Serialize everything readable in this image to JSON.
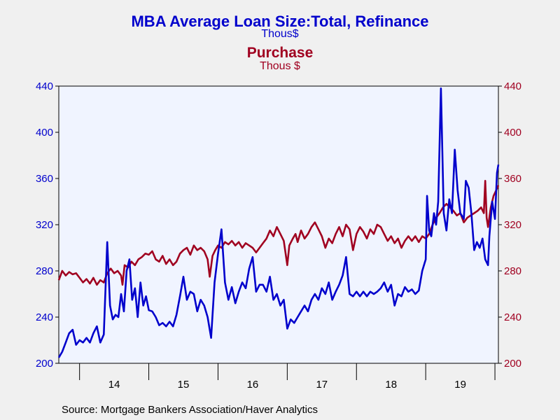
{
  "chart_data": {
    "type": "line",
    "title": "MBA Average Loan Size:Total, Refinance",
    "title_unit": "Thous$",
    "subtitle": "Purchase",
    "subtitle_unit": "Thous $",
    "source": "Source:  Mortgage Bankers Association/Haver Analytics",
    "x_labels": [
      "14",
      "15",
      "16",
      "17",
      "18",
      "19"
    ],
    "xlim": [
      2013.7,
      2020.05
    ],
    "y_left": {
      "ticks": [
        "200",
        "240",
        "280",
        "320",
        "360",
        "400",
        "440"
      ],
      "ylim": [
        200,
        440
      ]
    },
    "y_right": {
      "ticks": [
        "200",
        "240",
        "280",
        "320",
        "360",
        "400",
        "440"
      ],
      "ylim": [
        200,
        440
      ]
    },
    "grid": false,
    "legend": "none",
    "colors": {
      "refinance": "#0000cc",
      "purchase": "#a00020",
      "plot_bg": "#f0f4ff",
      "page_bg": "#f0f0f0"
    },
    "series": [
      {
        "name": "Refinance",
        "axis": "left",
        "color": "#0000cc",
        "points": [
          [
            2013.7,
            205
          ],
          [
            2013.75,
            210
          ],
          [
            2013.8,
            218
          ],
          [
            2013.85,
            226
          ],
          [
            2013.9,
            229
          ],
          [
            2013.95,
            216
          ],
          [
            2014.0,
            220
          ],
          [
            2014.05,
            218
          ],
          [
            2014.1,
            222
          ],
          [
            2014.15,
            218
          ],
          [
            2014.2,
            226
          ],
          [
            2014.25,
            232
          ],
          [
            2014.3,
            218
          ],
          [
            2014.35,
            225
          ],
          [
            2014.4,
            305
          ],
          [
            2014.44,
            250
          ],
          [
            2014.48,
            238
          ],
          [
            2014.52,
            242
          ],
          [
            2014.56,
            240
          ],
          [
            2014.6,
            260
          ],
          [
            2014.64,
            245
          ],
          [
            2014.68,
            280
          ],
          [
            2014.72,
            290
          ],
          [
            2014.76,
            255
          ],
          [
            2014.8,
            265
          ],
          [
            2014.84,
            240
          ],
          [
            2014.88,
            270
          ],
          [
            2014.92,
            250
          ],
          [
            2014.96,
            258
          ],
          [
            2015.0,
            246
          ],
          [
            2015.05,
            245
          ],
          [
            2015.1,
            240
          ],
          [
            2015.15,
            233
          ],
          [
            2015.2,
            235
          ],
          [
            2015.25,
            232
          ],
          [
            2015.3,
            236
          ],
          [
            2015.35,
            232
          ],
          [
            2015.4,
            242
          ],
          [
            2015.45,
            258
          ],
          [
            2015.5,
            275
          ],
          [
            2015.55,
            255
          ],
          [
            2015.6,
            262
          ],
          [
            2015.65,
            260
          ],
          [
            2015.7,
            245
          ],
          [
            2015.75,
            255
          ],
          [
            2015.8,
            250
          ],
          [
            2015.85,
            240
          ],
          [
            2015.9,
            222
          ],
          [
            2015.95,
            270
          ],
          [
            2016.0,
            295
          ],
          [
            2016.05,
            316
          ],
          [
            2016.1,
            270
          ],
          [
            2016.15,
            255
          ],
          [
            2016.2,
            266
          ],
          [
            2016.25,
            252
          ],
          [
            2016.3,
            262
          ],
          [
            2016.35,
            270
          ],
          [
            2016.4,
            265
          ],
          [
            2016.45,
            282
          ],
          [
            2016.5,
            292
          ],
          [
            2016.55,
            262
          ],
          [
            2016.6,
            268
          ],
          [
            2016.65,
            268
          ],
          [
            2016.7,
            262
          ],
          [
            2016.75,
            275
          ],
          [
            2016.8,
            255
          ],
          [
            2016.85,
            260
          ],
          [
            2016.9,
            250
          ],
          [
            2016.95,
            255
          ],
          [
            2017.0,
            230
          ],
          [
            2017.05,
            238
          ],
          [
            2017.1,
            235
          ],
          [
            2017.15,
            240
          ],
          [
            2017.2,
            245
          ],
          [
            2017.25,
            250
          ],
          [
            2017.3,
            245
          ],
          [
            2017.35,
            255
          ],
          [
            2017.4,
            260
          ],
          [
            2017.45,
            255
          ],
          [
            2017.5,
            265
          ],
          [
            2017.55,
            260
          ],
          [
            2017.6,
            270
          ],
          [
            2017.65,
            255
          ],
          [
            2017.7,
            262
          ],
          [
            2017.75,
            268
          ],
          [
            2017.8,
            276
          ],
          [
            2017.85,
            292
          ],
          [
            2017.9,
            260
          ],
          [
            2017.95,
            258
          ],
          [
            2018.0,
            262
          ],
          [
            2018.05,
            258
          ],
          [
            2018.1,
            262
          ],
          [
            2018.15,
            258
          ],
          [
            2018.2,
            262
          ],
          [
            2018.25,
            260
          ],
          [
            2018.3,
            262
          ],
          [
            2018.35,
            265
          ],
          [
            2018.4,
            270
          ],
          [
            2018.45,
            262
          ],
          [
            2018.5,
            268
          ],
          [
            2018.55,
            250
          ],
          [
            2018.6,
            260
          ],
          [
            2018.65,
            258
          ],
          [
            2018.7,
            266
          ],
          [
            2018.75,
            262
          ],
          [
            2018.8,
            264
          ],
          [
            2018.85,
            260
          ],
          [
            2018.9,
            263
          ],
          [
            2018.95,
            280
          ],
          [
            2019.0,
            290
          ],
          [
            2019.02,
            345
          ],
          [
            2019.05,
            315
          ],
          [
            2019.08,
            310
          ],
          [
            2019.12,
            330
          ],
          [
            2019.15,
            320
          ],
          [
            2019.18,
            340
          ],
          [
            2019.22,
            438
          ],
          [
            2019.26,
            330
          ],
          [
            2019.3,
            315
          ],
          [
            2019.34,
            342
          ],
          [
            2019.38,
            330
          ],
          [
            2019.42,
            385
          ],
          [
            2019.46,
            350
          ],
          [
            2019.5,
            330
          ],
          [
            2019.55,
            325
          ],
          [
            2019.58,
            358
          ],
          [
            2019.62,
            352
          ],
          [
            2019.66,
            330
          ],
          [
            2019.7,
            298
          ],
          [
            2019.74,
            305
          ],
          [
            2019.78,
            300
          ],
          [
            2019.82,
            308
          ],
          [
            2019.86,
            290
          ],
          [
            2019.9,
            285
          ],
          [
            2019.92,
            310
          ],
          [
            2019.96,
            340
          ],
          [
            2020.0,
            325
          ],
          [
            2020.03,
            365
          ],
          [
            2020.05,
            372
          ]
        ]
      },
      {
        "name": "Purchase",
        "axis": "right",
        "color": "#a00020",
        "points": [
          [
            2013.7,
            272
          ],
          [
            2013.75,
            280
          ],
          [
            2013.8,
            276
          ],
          [
            2013.85,
            279
          ],
          [
            2013.9,
            277
          ],
          [
            2013.95,
            278
          ],
          [
            2014.0,
            274
          ],
          [
            2014.05,
            270
          ],
          [
            2014.1,
            273
          ],
          [
            2014.15,
            269
          ],
          [
            2014.2,
            274
          ],
          [
            2014.25,
            268
          ],
          [
            2014.3,
            272
          ],
          [
            2014.35,
            270
          ],
          [
            2014.4,
            278
          ],
          [
            2014.45,
            282
          ],
          [
            2014.5,
            278
          ],
          [
            2014.55,
            280
          ],
          [
            2014.6,
            276
          ],
          [
            2014.62,
            268
          ],
          [
            2014.65,
            285
          ],
          [
            2014.7,
            283
          ],
          [
            2014.75,
            288
          ],
          [
            2014.8,
            285
          ],
          [
            2014.85,
            290
          ],
          [
            2014.9,
            292
          ],
          [
            2014.95,
            295
          ],
          [
            2015.0,
            294
          ],
          [
            2015.05,
            297
          ],
          [
            2015.1,
            290
          ],
          [
            2015.15,
            288
          ],
          [
            2015.2,
            293
          ],
          [
            2015.25,
            286
          ],
          [
            2015.3,
            290
          ],
          [
            2015.35,
            285
          ],
          [
            2015.4,
            288
          ],
          [
            2015.45,
            295
          ],
          [
            2015.5,
            298
          ],
          [
            2015.55,
            300
          ],
          [
            2015.6,
            294
          ],
          [
            2015.65,
            302
          ],
          [
            2015.7,
            298
          ],
          [
            2015.75,
            300
          ],
          [
            2015.8,
            297
          ],
          [
            2015.85,
            290
          ],
          [
            2015.88,
            275
          ],
          [
            2015.92,
            293
          ],
          [
            2015.96,
            298
          ],
          [
            2016.0,
            302
          ],
          [
            2016.05,
            300
          ],
          [
            2016.1,
            305
          ],
          [
            2016.15,
            303
          ],
          [
            2016.2,
            306
          ],
          [
            2016.25,
            302
          ],
          [
            2016.3,
            305
          ],
          [
            2016.35,
            300
          ],
          [
            2016.4,
            304
          ],
          [
            2016.45,
            302
          ],
          [
            2016.5,
            300
          ],
          [
            2016.55,
            296
          ],
          [
            2016.6,
            300
          ],
          [
            2016.65,
            304
          ],
          [
            2016.7,
            308
          ],
          [
            2016.75,
            315
          ],
          [
            2016.8,
            310
          ],
          [
            2016.85,
            318
          ],
          [
            2016.9,
            312
          ],
          [
            2016.95,
            306
          ],
          [
            2017.0,
            285
          ],
          [
            2017.03,
            302
          ],
          [
            2017.08,
            308
          ],
          [
            2017.12,
            312
          ],
          [
            2017.15,
            305
          ],
          [
            2017.2,
            315
          ],
          [
            2017.25,
            308
          ],
          [
            2017.3,
            312
          ],
          [
            2017.35,
            318
          ],
          [
            2017.4,
            322
          ],
          [
            2017.45,
            316
          ],
          [
            2017.5,
            310
          ],
          [
            2017.55,
            300
          ],
          [
            2017.6,
            308
          ],
          [
            2017.65,
            304
          ],
          [
            2017.7,
            312
          ],
          [
            2017.75,
            318
          ],
          [
            2017.8,
            310
          ],
          [
            2017.85,
            320
          ],
          [
            2017.9,
            316
          ],
          [
            2017.95,
            298
          ],
          [
            2018.0,
            312
          ],
          [
            2018.05,
            318
          ],
          [
            2018.1,
            314
          ],
          [
            2018.15,
            308
          ],
          [
            2018.2,
            316
          ],
          [
            2018.25,
            312
          ],
          [
            2018.3,
            320
          ],
          [
            2018.35,
            318
          ],
          [
            2018.4,
            312
          ],
          [
            2018.45,
            306
          ],
          [
            2018.5,
            310
          ],
          [
            2018.55,
            304
          ],
          [
            2018.6,
            308
          ],
          [
            2018.65,
            300
          ],
          [
            2018.7,
            306
          ],
          [
            2018.75,
            310
          ],
          [
            2018.8,
            306
          ],
          [
            2018.85,
            310
          ],
          [
            2018.9,
            305
          ],
          [
            2018.95,
            310
          ],
          [
            2019.0,
            308
          ],
          [
            2019.05,
            312
          ],
          [
            2019.1,
            320
          ],
          [
            2019.15,
            326
          ],
          [
            2019.2,
            330
          ],
          [
            2019.25,
            335
          ],
          [
            2019.3,
            338
          ],
          [
            2019.35,
            335
          ],
          [
            2019.4,
            332
          ],
          [
            2019.45,
            328
          ],
          [
            2019.5,
            330
          ],
          [
            2019.55,
            322
          ],
          [
            2019.6,
            326
          ],
          [
            2019.65,
            328
          ],
          [
            2019.7,
            330
          ],
          [
            2019.75,
            332
          ],
          [
            2019.8,
            335
          ],
          [
            2019.84,
            330
          ],
          [
            2019.86,
            358
          ],
          [
            2019.88,
            326
          ],
          [
            2019.9,
            318
          ],
          [
            2019.94,
            335
          ],
          [
            2019.98,
            345
          ],
          [
            2020.02,
            350
          ],
          [
            2020.05,
            354
          ]
        ]
      }
    ]
  }
}
